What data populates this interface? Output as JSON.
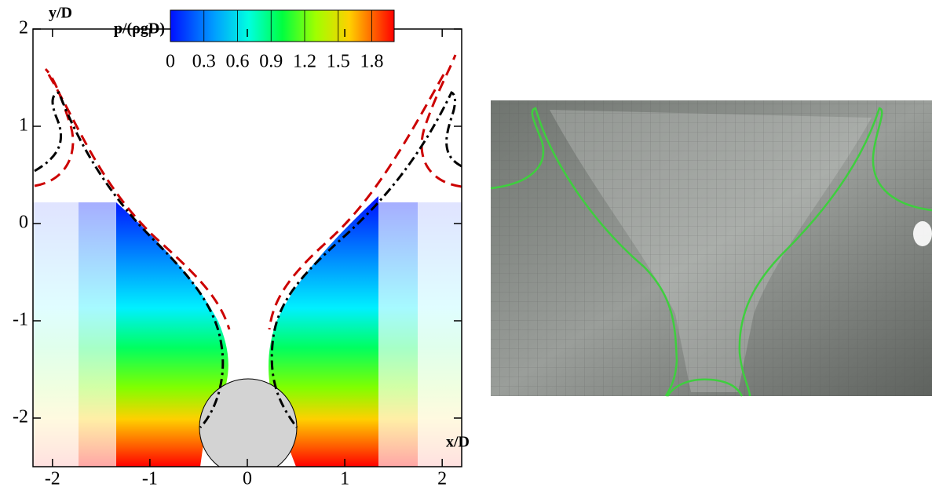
{
  "chart_data": {
    "type": "contour",
    "xlabel": "x/D",
    "ylabel": "y/D",
    "xlim": [
      -2.2,
      2.2
    ],
    "ylim": [
      -2.5,
      2
    ],
    "xticks": [
      -2,
      -1,
      0,
      1,
      2
    ],
    "yticks": [
      -2,
      -1,
      0,
      1,
      2
    ],
    "colorbar": {
      "label": "p/(ρgD)",
      "range": [
        0,
        2
      ],
      "ticks": [
        0,
        0.3,
        0.6,
        0.9,
        1.2,
        1.5,
        1.8
      ]
    }
  }
}
